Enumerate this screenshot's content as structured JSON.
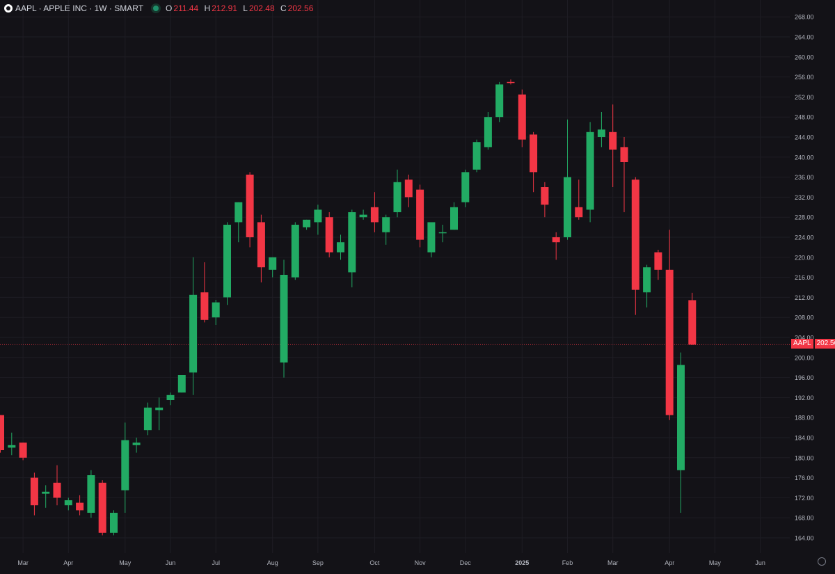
{
  "header": {
    "title": "AAPL · APPLE INC · 1W · SMART",
    "open_label": "O",
    "open": "211.44",
    "high_label": "H",
    "high": "212.91",
    "low_label": "L",
    "low": "202.48",
    "close_label": "C",
    "close": "202.56"
  },
  "price_tag": {
    "symbol": "AAPL",
    "value": "202.56"
  },
  "colors": {
    "up": "#22ab64",
    "down": "#f23645",
    "background": "#131217",
    "grid": "#1e1d24",
    "text": "#b2b5be"
  },
  "icons": {
    "logo": "apple-logo-icon",
    "status": "market-status-dot-icon",
    "settings": "settings-gear-icon"
  },
  "chart_data": {
    "type": "candlestick",
    "interval": "1W",
    "y_axis": {
      "range": [
        162,
        270
      ],
      "ticks": [
        164,
        168,
        172,
        176,
        180,
        184,
        188,
        192,
        196,
        200,
        204,
        208,
        212,
        216,
        220,
        224,
        228,
        232,
        236,
        240,
        244,
        248,
        252,
        256,
        260,
        264,
        268
      ],
      "position": "right"
    },
    "x_axis": {
      "labels": [
        "Mar",
        "Apr",
        "May",
        "Jun",
        "Jul",
        "Aug",
        "Sep",
        "Oct",
        "Nov",
        "Dec",
        "2025",
        "Feb",
        "Mar",
        "Apr",
        "May",
        "Jun"
      ],
      "label_week_index": [
        2,
        6,
        11,
        15,
        19,
        24,
        28,
        33,
        37,
        41,
        46,
        50,
        54,
        59,
        63,
        67
      ]
    },
    "last_price": 202.56,
    "candles": [
      {
        "o": 188.5,
        "h": 188.5,
        "l": 181.0,
        "c": 181.5
      },
      {
        "o": 182.0,
        "h": 185.0,
        "l": 180.5,
        "c": 182.5
      },
      {
        "o": 183.0,
        "h": 183.0,
        "l": 179.5,
        "c": 180.0
      },
      {
        "o": 176.0,
        "h": 177.0,
        "l": 168.5,
        "c": 170.5
      },
      {
        "o": 172.8,
        "h": 174.5,
        "l": 170.0,
        "c": 173.2
      },
      {
        "o": 175.0,
        "h": 178.5,
        "l": 170.5,
        "c": 172.0
      },
      {
        "o": 170.5,
        "h": 172.0,
        "l": 169.5,
        "c": 171.5
      },
      {
        "o": 171.0,
        "h": 172.5,
        "l": 168.5,
        "c": 169.5
      },
      {
        "o": 169.0,
        "h": 177.5,
        "l": 168.0,
        "c": 176.5
      },
      {
        "o": 175.0,
        "h": 175.5,
        "l": 164.5,
        "c": 165.0
      },
      {
        "o": 165.0,
        "h": 169.5,
        "l": 164.5,
        "c": 169.0
      },
      {
        "o": 173.5,
        "h": 187.0,
        "l": 169.0,
        "c": 183.5
      },
      {
        "o": 182.5,
        "h": 184.0,
        "l": 181.0,
        "c": 183.0
      },
      {
        "o": 185.5,
        "h": 191.0,
        "l": 184.5,
        "c": 190.0
      },
      {
        "o": 189.5,
        "h": 192.0,
        "l": 185.5,
        "c": 190.0
      },
      {
        "o": 191.5,
        "h": 193.0,
        "l": 190.5,
        "c": 192.5
      },
      {
        "o": 193.0,
        "h": 196.0,
        "l": 193.0,
        "c": 196.5
      },
      {
        "o": 197.0,
        "h": 220.0,
        "l": 192.5,
        "c": 212.5
      },
      {
        "o": 213.0,
        "h": 219.0,
        "l": 207.0,
        "c": 207.5
      },
      {
        "o": 208.0,
        "h": 211.5,
        "l": 206.5,
        "c": 211.0
      },
      {
        "o": 212.0,
        "h": 227.0,
        "l": 210.5,
        "c": 226.5
      },
      {
        "o": 227.0,
        "h": 231.0,
        "l": 223.0,
        "c": 231.0
      },
      {
        "o": 236.5,
        "h": 237.0,
        "l": 222.0,
        "c": 224.0
      },
      {
        "o": 227.0,
        "h": 228.5,
        "l": 215.0,
        "c": 218.0
      },
      {
        "o": 217.5,
        "h": 220.0,
        "l": 216.0,
        "c": 220.0
      },
      {
        "o": 199.0,
        "h": 219.5,
        "l": 196.0,
        "c": 216.5
      },
      {
        "o": 216.0,
        "h": 227.0,
        "l": 215.5,
        "c": 226.5
      },
      {
        "o": 226.0,
        "h": 227.5,
        "l": 225.5,
        "c": 227.5
      },
      {
        "o": 227.0,
        "h": 230.5,
        "l": 224.5,
        "c": 229.5
      },
      {
        "o": 228.0,
        "h": 229.0,
        "l": 220.0,
        "c": 221.0
      },
      {
        "o": 221.0,
        "h": 224.5,
        "l": 219.5,
        "c": 223.0
      },
      {
        "o": 217.0,
        "h": 229.5,
        "l": 214.0,
        "c": 229.0
      },
      {
        "o": 228.0,
        "h": 229.5,
        "l": 227.5,
        "c": 228.5
      },
      {
        "o": 230.0,
        "h": 233.0,
        "l": 225.0,
        "c": 227.0
      },
      {
        "o": 225.0,
        "h": 228.5,
        "l": 222.5,
        "c": 228.0
      },
      {
        "o": 229.0,
        "h": 237.5,
        "l": 228.0,
        "c": 235.0
      },
      {
        "o": 235.5,
        "h": 236.5,
        "l": 230.0,
        "c": 232.0
      },
      {
        "o": 233.5,
        "h": 234.5,
        "l": 222.0,
        "c": 223.5
      },
      {
        "o": 221.0,
        "h": 226.5,
        "l": 220.0,
        "c": 227.0
      },
      {
        "o": 225.0,
        "h": 226.5,
        "l": 223.0,
        "c": 225.0
      },
      {
        "o": 225.5,
        "h": 231.0,
        "l": 225.5,
        "c": 230.0
      },
      {
        "o": 231.0,
        "h": 237.5,
        "l": 230.0,
        "c": 237.0
      },
      {
        "o": 237.5,
        "h": 243.5,
        "l": 237.0,
        "c": 243.0
      },
      {
        "o": 242.0,
        "h": 249.0,
        "l": 241.5,
        "c": 248.0
      },
      {
        "o": 248.0,
        "h": 255.0,
        "l": 247.0,
        "c": 254.5
      },
      {
        "o": 255.0,
        "h": 255.5,
        "l": 254.5,
        "c": 254.8
      },
      {
        "o": 252.5,
        "h": 253.5,
        "l": 242.0,
        "c": 243.5
      },
      {
        "o": 244.5,
        "h": 245.0,
        "l": 233.0,
        "c": 237.0
      },
      {
        "o": 234.0,
        "h": 235.0,
        "l": 228.0,
        "c": 230.5
      },
      {
        "o": 224.0,
        "h": 225.0,
        "l": 219.5,
        "c": 223.0
      },
      {
        "o": 224.0,
        "h": 247.5,
        "l": 223.5,
        "c": 236.0
      },
      {
        "o": 230.0,
        "h": 235.5,
        "l": 227.5,
        "c": 228.0
      },
      {
        "o": 229.5,
        "h": 247.0,
        "l": 227.0,
        "c": 245.0
      },
      {
        "o": 244.0,
        "h": 249.0,
        "l": 242.0,
        "c": 245.5
      },
      {
        "o": 245.0,
        "h": 250.5,
        "l": 234.0,
        "c": 241.5
      },
      {
        "o": 242.0,
        "h": 244.0,
        "l": 229.0,
        "c": 239.0
      },
      {
        "o": 235.5,
        "h": 236.0,
        "l": 208.5,
        "c": 213.5
      },
      {
        "o": 213.0,
        "h": 218.5,
        "l": 210.0,
        "c": 218.0
      },
      {
        "o": 221.0,
        "h": 221.5,
        "l": 215.5,
        "c": 217.5
      },
      {
        "o": 217.5,
        "h": 225.5,
        "l": 187.5,
        "c": 188.5
      },
      {
        "o": 177.5,
        "h": 201.0,
        "l": 169.0,
        "c": 198.5
      },
      {
        "o": 211.44,
        "h": 212.91,
        "l": 202.48,
        "c": 202.56
      }
    ]
  }
}
